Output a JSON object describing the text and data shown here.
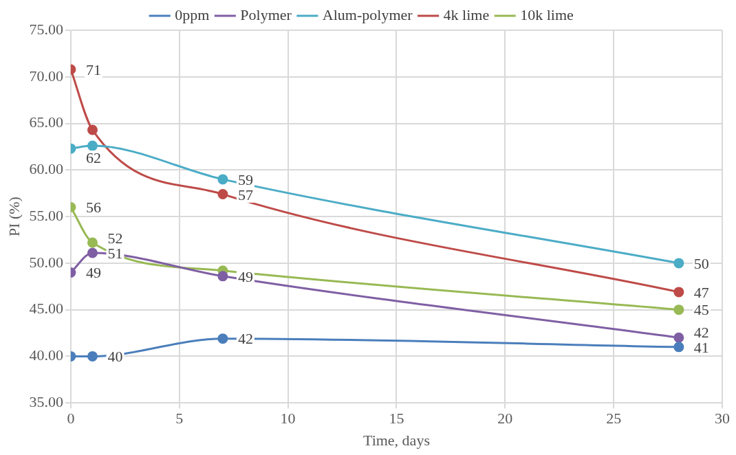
{
  "chart_data": {
    "type": "line",
    "xlabel": "Time, days",
    "ylabel": "PI (%)",
    "x": [
      0,
      1,
      7,
      28
    ],
    "xlim": [
      0,
      30
    ],
    "xticks": [
      0,
      5,
      10,
      15,
      20,
      25,
      30
    ],
    "ylim": [
      35,
      75
    ],
    "yticks": [
      {
        "value": 35,
        "label": "35.00"
      },
      {
        "value": 40,
        "label": "40.00"
      },
      {
        "value": 45,
        "label": "45.00"
      },
      {
        "value": 50,
        "label": "50.00"
      },
      {
        "value": 55,
        "label": "55.00"
      },
      {
        "value": 60,
        "label": "60.00"
      },
      {
        "value": 65,
        "label": "65.00"
      },
      {
        "value": 70,
        "label": "70.00"
      },
      {
        "value": 75,
        "label": "75.00"
      }
    ],
    "grid": true,
    "legend": "top",
    "marker": "circle",
    "line_style": "solid",
    "series": [
      {
        "name": "0ppm",
        "color": "#4a7ebb",
        "values": [
          40,
          40,
          41.9,
          41
        ],
        "value_labels": [
          null,
          "40",
          "42",
          "41"
        ]
      },
      {
        "name": "Polymer",
        "color": "#7f5fa4",
        "values": [
          49,
          51.1,
          48.6,
          42
        ],
        "value_labels": [
          "49",
          "51",
          "49",
          "42"
        ]
      },
      {
        "name": "Alum-polymer",
        "color": "#4bacc6",
        "values": [
          62.3,
          62.6,
          59,
          50
        ],
        "value_labels": [
          "62",
          null,
          "59",
          "50"
        ]
      },
      {
        "name": "4k lime",
        "color": "#be4b48",
        "values": [
          70.8,
          64.3,
          57.4,
          46.9
        ],
        "value_labels": [
          "71",
          null,
          "57",
          "47"
        ]
      },
      {
        "name": "10k lime",
        "color": "#98b954",
        "values": [
          56,
          52.2,
          49.2,
          45
        ],
        "value_labels": [
          "56",
          "52",
          null,
          "45"
        ]
      }
    ]
  }
}
